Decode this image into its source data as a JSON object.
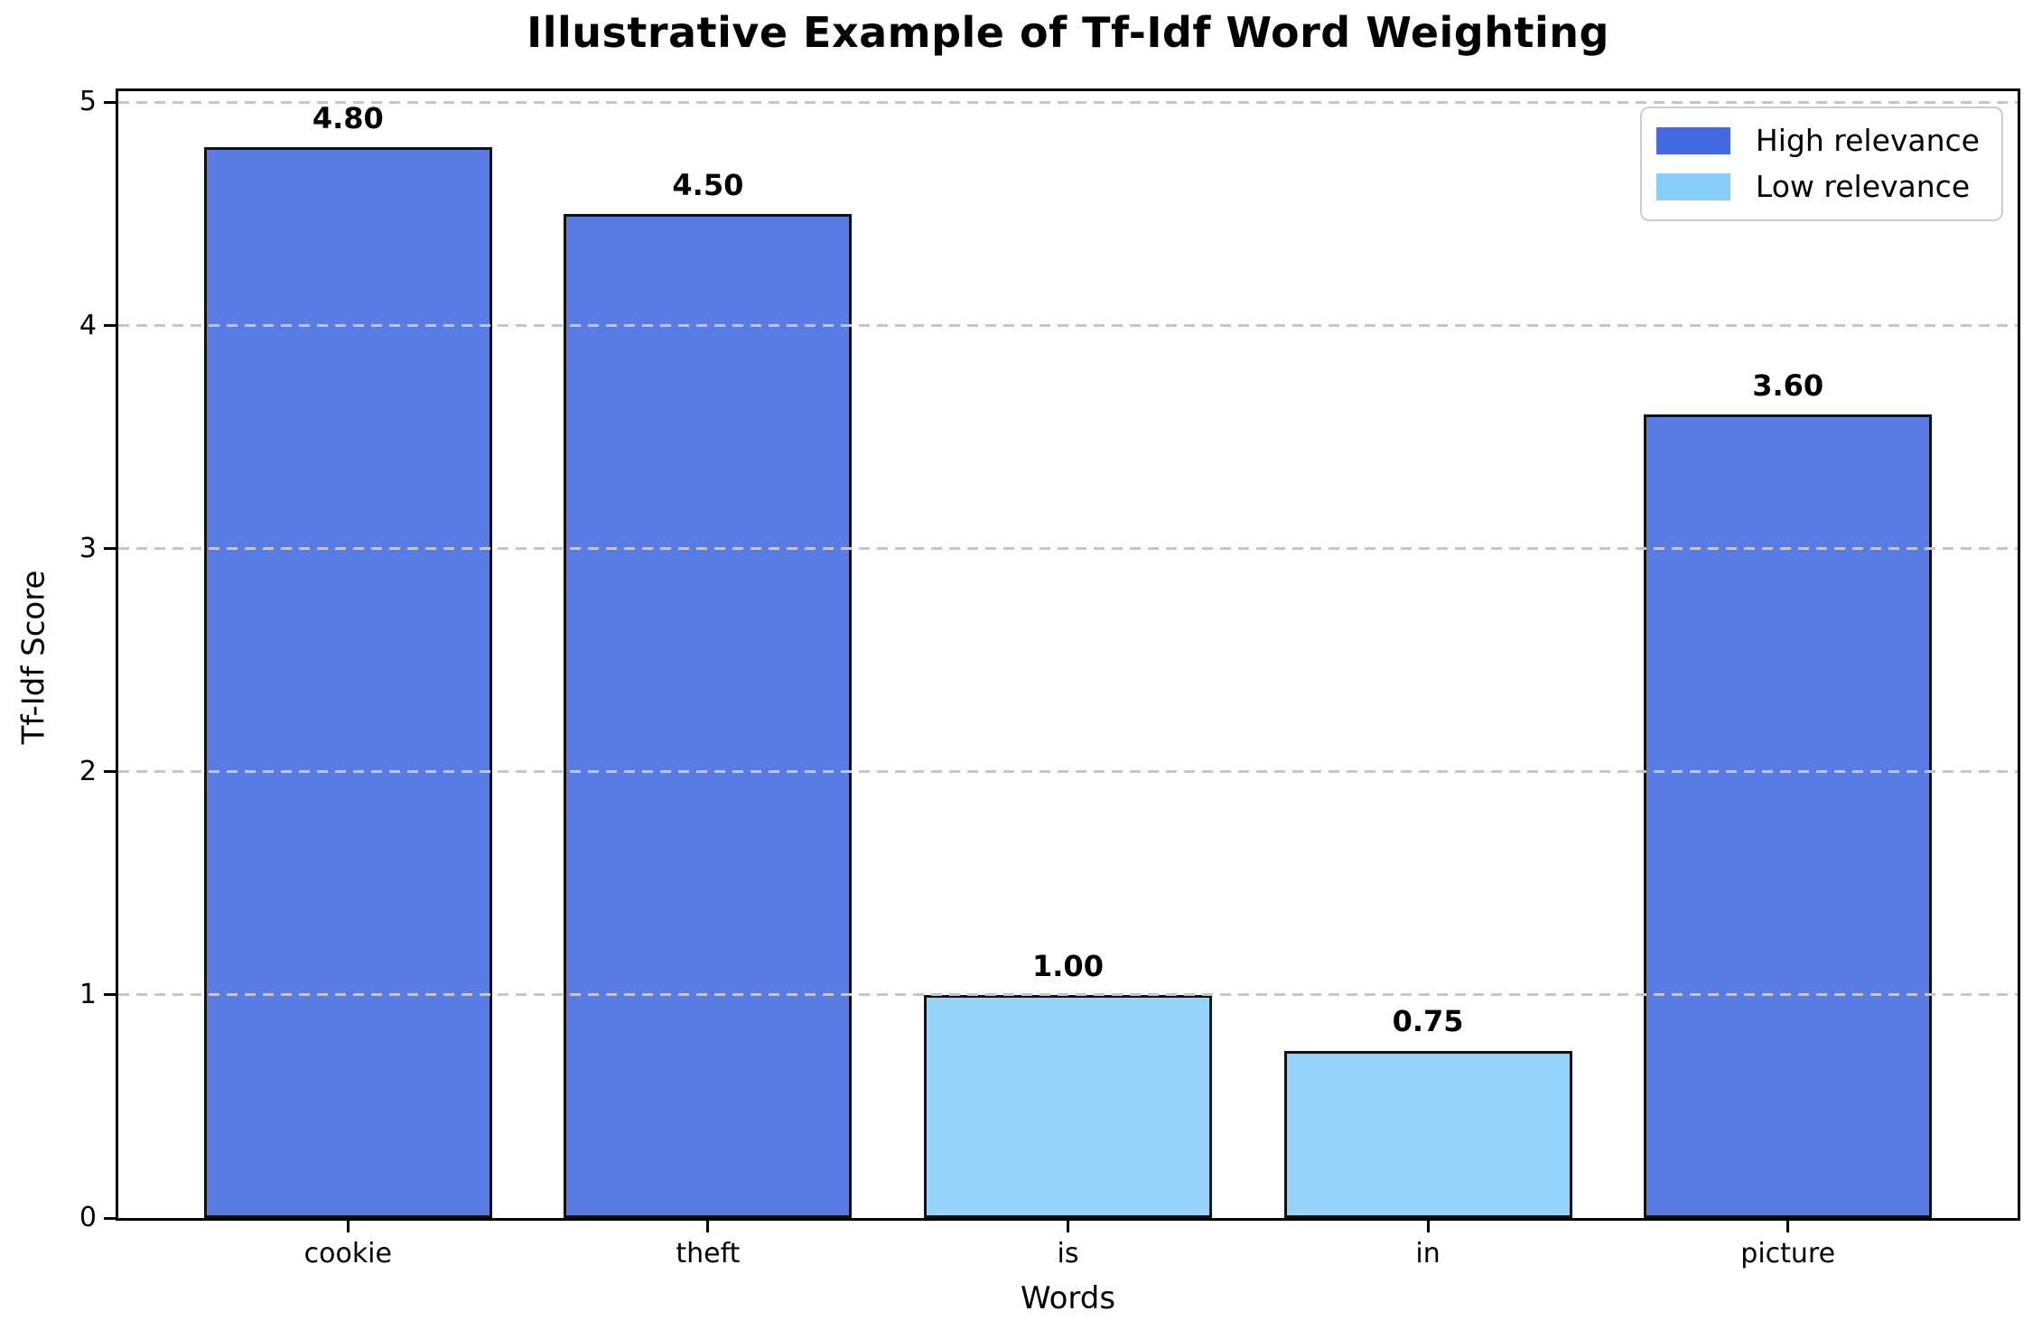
{
  "chart_data": {
    "type": "bar",
    "title": "Illustrative Example of Tf-Idf Word Weighting",
    "categories": [
      "cookie",
      "theft",
      "is",
      "in",
      "picture"
    ],
    "values": [
      4.8,
      4.5,
      1.0,
      0.75,
      3.6
    ],
    "value_labels": [
      "4.80",
      "4.50",
      "1.00",
      "0.75",
      "3.60"
    ],
    "bar_relevance": [
      "high",
      "high",
      "low",
      "low",
      "high"
    ],
    "series": [
      {
        "name": "High relevance",
        "color": "#4169E1",
        "categories": [
          "cookie",
          "theft",
          "picture"
        ],
        "values": [
          4.8,
          4.5,
          3.6
        ]
      },
      {
        "name": "Low relevance",
        "color": "#87CEFA",
        "categories": [
          "is",
          "in"
        ],
        "values": [
          1.0,
          0.75
        ]
      }
    ],
    "xlabel": "Words",
    "ylabel": "Tf-Idf Score",
    "ylim": [
      0,
      5.05
    ],
    "yticks": [
      "0",
      "1",
      "2",
      "3",
      "4",
      "5"
    ],
    "grid": {
      "axis": "y",
      "style": "dashed",
      "on": true
    },
    "legend": {
      "position": "upper-right",
      "entries": [
        {
          "label": "High relevance",
          "color": "#4169E1"
        },
        {
          "label": "Low relevance",
          "color": "#87CEFA"
        }
      ]
    }
  },
  "colors": {
    "high_bar_fill": "#587BE4",
    "low_bar_fill": "#95D4FB",
    "bar_edge": "#111111",
    "grid_line": "#C6C6C6",
    "axis_line": "#000000",
    "legend_border": "#CCCCCC",
    "text": "#000000"
  }
}
